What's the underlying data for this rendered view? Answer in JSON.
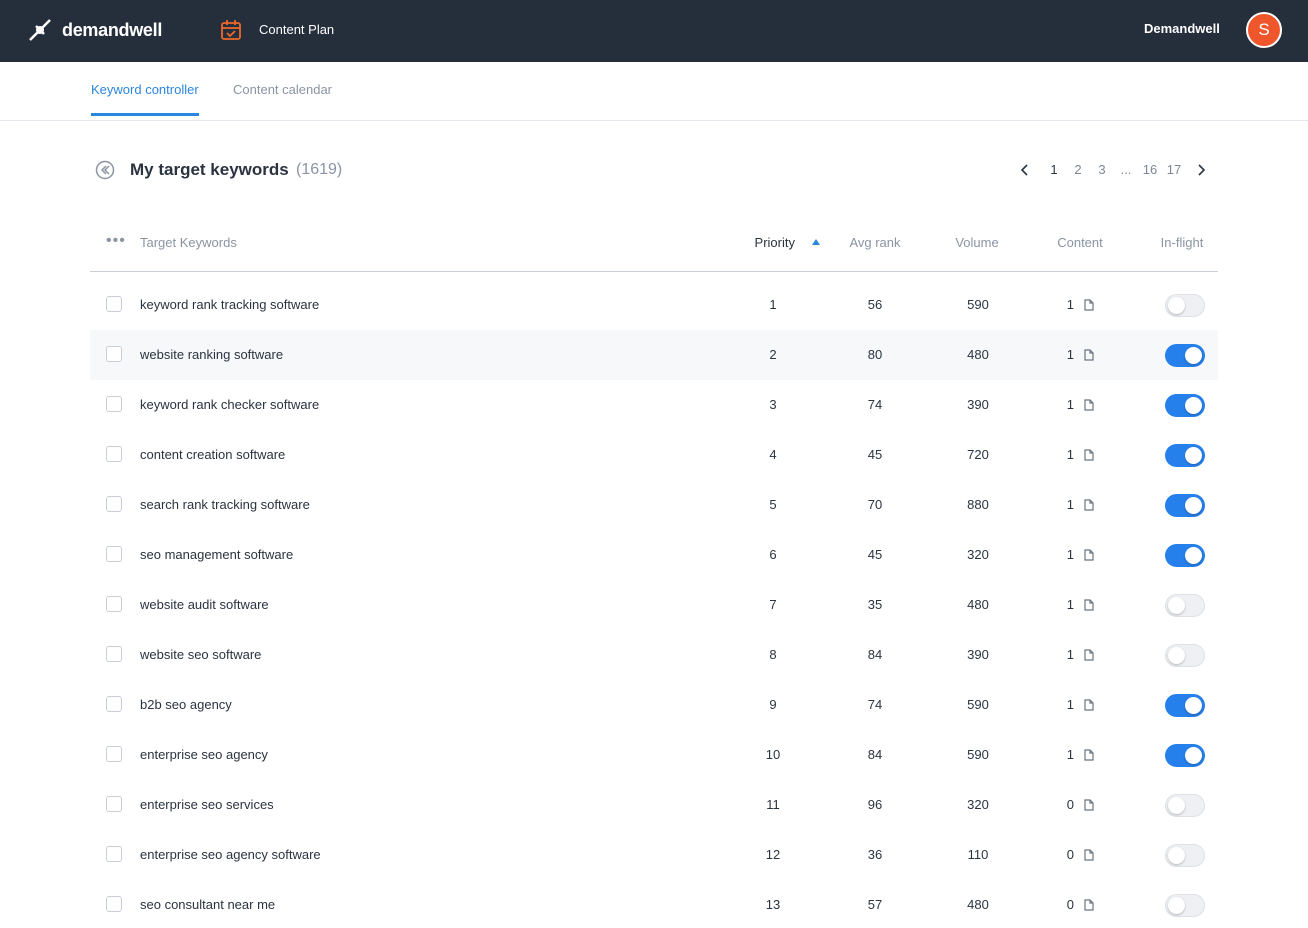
{
  "header": {
    "logo": "demandwell",
    "nav_item": "Content Plan",
    "user_name": "Demandwell",
    "avatar": "S"
  },
  "tabs": {
    "items": [
      "Keyword controller",
      "Content calendar"
    ],
    "active": 0
  },
  "section": {
    "title": "My target keywords",
    "count": "(1619)"
  },
  "pagination": {
    "pages": [
      "1",
      "2",
      "3",
      "...",
      "16",
      "17"
    ],
    "current": 0
  },
  "table": {
    "columns": [
      "Target Keywords",
      "Priority",
      "Avg rank",
      "Volume",
      "Content",
      "In-flight"
    ],
    "highlighted_row": 1,
    "rows": [
      [
        "keyword rank tracking software",
        1,
        56,
        590,
        1,
        false
      ],
      [
        "website ranking software",
        2,
        80,
        480,
        1,
        true
      ],
      [
        "keyword rank checker software",
        3,
        74,
        390,
        1,
        true
      ],
      [
        "content creation software",
        4,
        45,
        720,
        1,
        true
      ],
      [
        "search rank tracking software",
        5,
        70,
        880,
        1,
        true
      ],
      [
        "seo management software",
        6,
        45,
        320,
        1,
        true
      ],
      [
        "website audit software",
        7,
        35,
        480,
        1,
        false
      ],
      [
        "website seo software",
        8,
        84,
        390,
        1,
        false
      ],
      [
        "b2b seo agency",
        9,
        74,
        590,
        1,
        true
      ],
      [
        "enterprise seo agency",
        10,
        84,
        590,
        1,
        true
      ],
      [
        "enterprise seo services",
        11,
        96,
        320,
        0,
        false
      ],
      [
        "enterprise seo agency software",
        12,
        36,
        110,
        0,
        false
      ],
      [
        "seo consultant near me",
        13,
        57,
        480,
        0,
        false
      ]
    ]
  }
}
